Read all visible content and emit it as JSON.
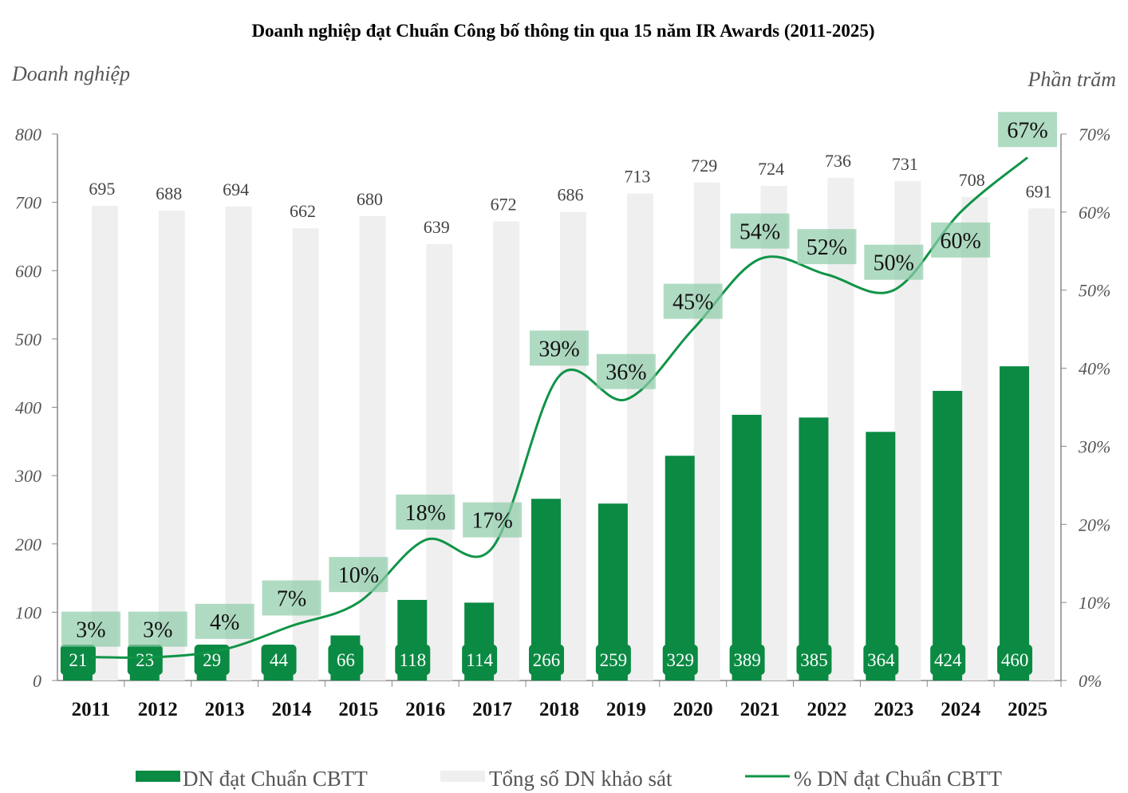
{
  "chart_data": {
    "type": "bar",
    "title": "Doanh nghiệp đạt Chuẩn Công bố thông tin qua 15 năm IR Awards (2011-2025)",
    "ylabel": "Doanh nghiệp",
    "y2label": "Phần trăm",
    "ylim": [
      0,
      800
    ],
    "y2lim": [
      0,
      70
    ],
    "yticks": [
      "0",
      "100",
      "200",
      "300",
      "400",
      "500",
      "600",
      "700",
      "800"
    ],
    "y2ticks": [
      "0%",
      "10%",
      "20%",
      "30%",
      "40%",
      "50%",
      "60%",
      "70%"
    ],
    "categories": [
      "2011",
      "2012",
      "2013",
      "2014",
      "2015",
      "2016",
      "2017",
      "2018",
      "2019",
      "2020",
      "2021",
      "2022",
      "2023",
      "2024",
      "2025"
    ],
    "series": [
      {
        "name": "DN đạt Chuẩn CBTT",
        "type": "bar",
        "color": "#0b8a43",
        "values": [
          21,
          23,
          29,
          44,
          66,
          118,
          114,
          266,
          259,
          329,
          389,
          385,
          364,
          424,
          460
        ]
      },
      {
        "name": "Tổng số DN khảo sát",
        "type": "bar",
        "color": "#efefef",
        "values": [
          695,
          688,
          694,
          662,
          680,
          639,
          672,
          686,
          713,
          729,
          724,
          736,
          731,
          708,
          691
        ]
      },
      {
        "name": "% DN đạt Chuẩn CBTT",
        "type": "line",
        "axis": "right",
        "color": "#109447",
        "values": [
          3,
          3,
          4,
          7,
          10,
          18,
          17,
          39,
          36,
          45,
          54,
          52,
          50,
          60,
          67
        ]
      }
    ],
    "legend": "bottom",
    "grid": false
  }
}
